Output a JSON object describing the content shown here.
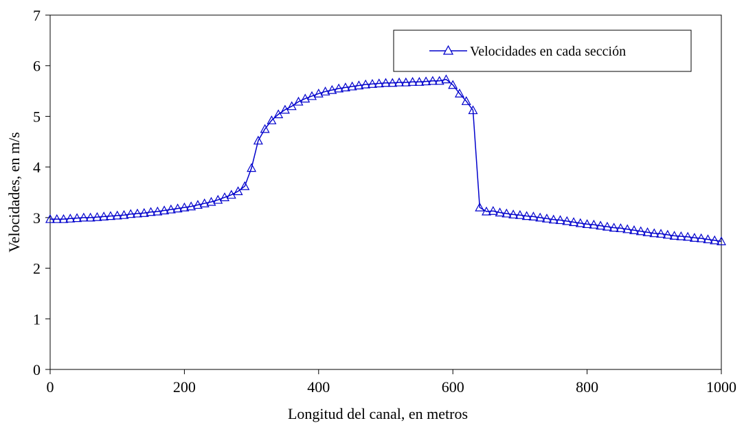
{
  "chart_data": {
    "type": "line",
    "title": "",
    "xlabel": "Longitud del canal, en metros",
    "ylabel": "Velocidades, en m/s",
    "xlim": [
      0,
      1000
    ],
    "ylim": [
      0,
      7
    ],
    "x_ticks": [
      "0",
      "200",
      "400",
      "600",
      "800",
      "1000"
    ],
    "y_ticks": [
      "0",
      "1",
      "2",
      "3",
      "4",
      "5",
      "6",
      "7"
    ],
    "grid": false,
    "legend_position": "top-right",
    "series": [
      {
        "name": "Velocidades en cada sección",
        "color": "#0000cc",
        "marker": "triangle",
        "x": [
          0,
          10,
          20,
          30,
          40,
          50,
          60,
          70,
          80,
          90,
          100,
          110,
          120,
          130,
          140,
          150,
          160,
          170,
          180,
          190,
          200,
          210,
          220,
          230,
          240,
          250,
          260,
          270,
          280,
          290,
          300,
          310,
          320,
          330,
          340,
          350,
          360,
          370,
          380,
          390,
          400,
          410,
          420,
          430,
          440,
          450,
          460,
          470,
          480,
          490,
          500,
          510,
          520,
          530,
          540,
          550,
          560,
          570,
          580,
          590,
          600,
          610,
          620,
          630,
          640,
          650,
          660,
          670,
          680,
          690,
          700,
          710,
          720,
          730,
          740,
          750,
          760,
          770,
          780,
          790,
          800,
          810,
          820,
          830,
          840,
          850,
          860,
          870,
          880,
          890,
          900,
          910,
          920,
          930,
          940,
          950,
          960,
          970,
          980,
          990,
          1000
        ],
        "y": [
          2.97,
          2.97,
          2.97,
          2.98,
          2.99,
          3.0,
          3.0,
          3.01,
          3.02,
          3.03,
          3.04,
          3.05,
          3.07,
          3.08,
          3.09,
          3.11,
          3.12,
          3.14,
          3.16,
          3.18,
          3.2,
          3.22,
          3.25,
          3.28,
          3.31,
          3.35,
          3.4,
          3.45,
          3.52,
          3.62,
          3.98,
          4.52,
          4.75,
          4.92,
          5.04,
          5.13,
          5.2,
          5.29,
          5.35,
          5.4,
          5.45,
          5.49,
          5.52,
          5.55,
          5.57,
          5.59,
          5.61,
          5.63,
          5.64,
          5.65,
          5.66,
          5.66,
          5.67,
          5.67,
          5.68,
          5.68,
          5.69,
          5.7,
          5.7,
          5.73,
          5.62,
          5.45,
          5.3,
          5.12,
          3.2,
          3.12,
          3.13,
          3.1,
          3.08,
          3.06,
          3.05,
          3.03,
          3.02,
          3.0,
          2.98,
          2.96,
          2.95,
          2.93,
          2.91,
          2.89,
          2.87,
          2.86,
          2.84,
          2.82,
          2.8,
          2.79,
          2.77,
          2.75,
          2.73,
          2.71,
          2.69,
          2.68,
          2.66,
          2.64,
          2.63,
          2.62,
          2.6,
          2.59,
          2.57,
          2.55,
          2.53
        ]
      }
    ]
  }
}
